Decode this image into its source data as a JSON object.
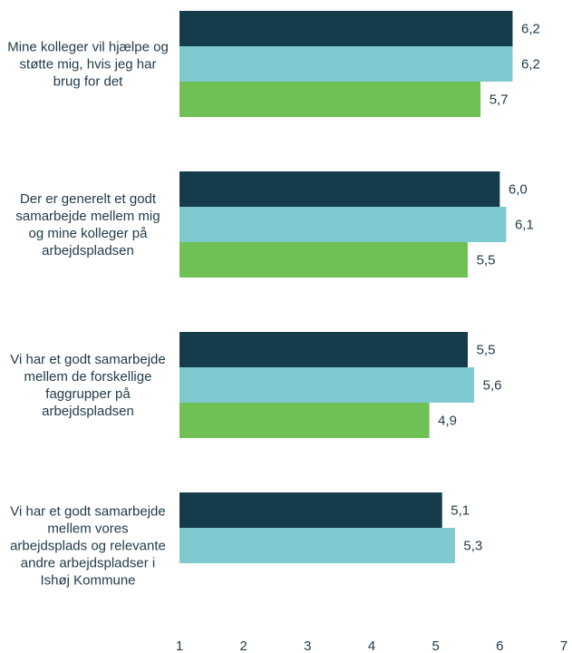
{
  "chart_data": {
    "type": "barh",
    "categories": [
      "Mine kolleger vil hjælpe og støtte mig, hvis jeg har brug for det",
      "Der er generelt et godt samarbejde mellem mig og mine kolleger på arbejdspladsen",
      "Vi har et godt samarbejde mellem de forskellige faggrupper på arbejdspladsen",
      "Vi har et godt samarbejde mellem vores arbejdsplads og relevante andre arbejdspladser i Ishøj Kommune"
    ],
    "series": [
      {
        "color": "#143c4b",
        "values": [
          6.2,
          6.0,
          5.5,
          5.1
        ],
        "value_labels": [
          "6,2",
          "6,0",
          "5,5",
          "5,1"
        ]
      },
      {
        "color": "#7fc9d0",
        "values": [
          6.2,
          6.1,
          5.6,
          5.3
        ],
        "value_labels": [
          "6,2",
          "6,1",
          "5,6",
          "5,3"
        ]
      },
      {
        "color": "#70c155",
        "values": [
          5.7,
          5.5,
          4.9,
          null
        ],
        "value_labels": [
          "5,7",
          "5,5",
          "4,9",
          null
        ]
      }
    ],
    "xlim": [
      1,
      7
    ],
    "xticks": [
      1,
      2,
      3,
      4,
      5,
      6,
      7
    ]
  }
}
